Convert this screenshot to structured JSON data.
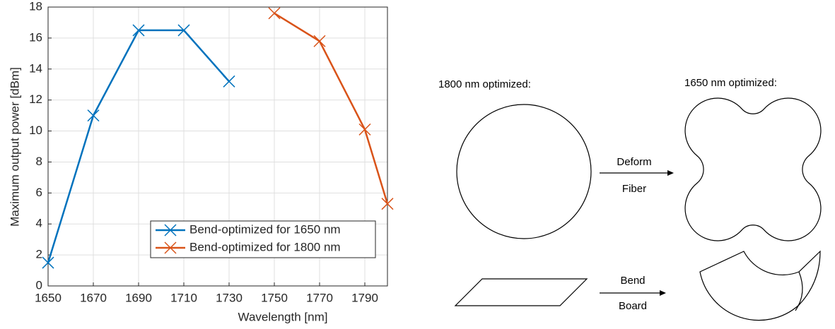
{
  "chart_data": {
    "type": "line",
    "xlabel": "Wavelength [nm]",
    "ylabel": "Maximum output power [dBm]",
    "series": [
      {
        "name": "Bend-optimized for 1650 nm",
        "color": "#0072BD",
        "x": [
          1650,
          1670,
          1690,
          1710,
          1730
        ],
        "values": [
          1.5,
          11.0,
          16.5,
          16.5,
          13.2
        ]
      },
      {
        "name": "Bend-optimized for 1800 nm",
        "color": "#D95319",
        "x": [
          1750,
          1770,
          1790,
          1800
        ],
        "values": [
          17.6,
          15.8,
          10.1,
          5.3
        ]
      }
    ],
    "xlim": [
      1650,
      1800
    ],
    "xticks": [
      1650,
      1670,
      1690,
      1710,
      1730,
      1750,
      1770,
      1790
    ],
    "ylim": [
      0,
      18
    ],
    "yticks": [
      0,
      2,
      4,
      6,
      8,
      10,
      12,
      14,
      16,
      18
    ],
    "grid": true,
    "marker": "x",
    "legend": "lower right"
  },
  "diagram": {
    "labels": [
      "1800 nm optimized:",
      "1650 nm optimized:"
    ],
    "arrows": [
      {
        "top": "Deform",
        "bottom": "Fiber"
      },
      {
        "top": "Bend",
        "bottom": "Board"
      }
    ]
  }
}
